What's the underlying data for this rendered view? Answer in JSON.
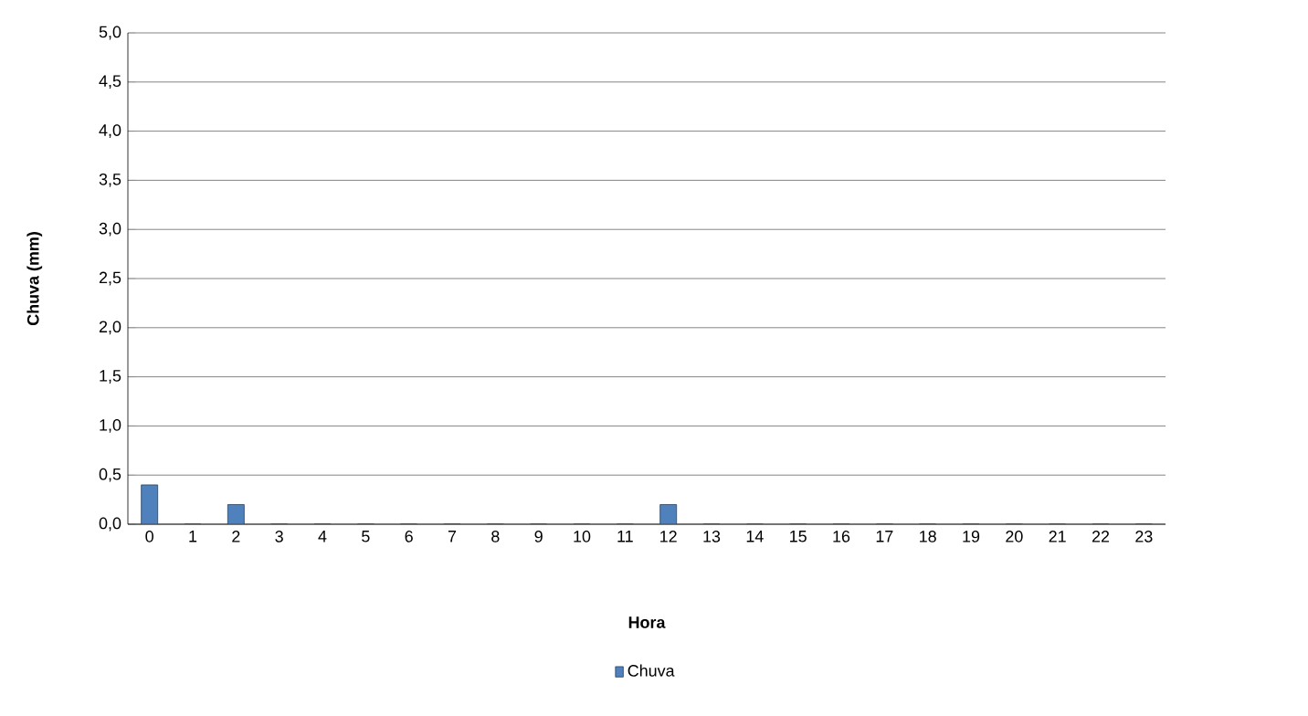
{
  "chart_data": {
    "type": "bar",
    "xlabel": "Hora",
    "ylabel": "Chuva (mm)",
    "categories": [
      "0",
      "1",
      "2",
      "3",
      "4",
      "5",
      "6",
      "7",
      "8",
      "9",
      "10",
      "11",
      "12",
      "13",
      "14",
      "15",
      "16",
      "17",
      "18",
      "19",
      "20",
      "21",
      "22",
      "23"
    ],
    "series": [
      {
        "name": "Chuva",
        "color": "#4f81bd",
        "values": [
          0.4,
          0,
          0.2,
          0,
          0,
          0,
          0,
          0,
          0,
          0,
          0,
          0,
          0.2,
          0,
          0,
          0,
          0,
          0,
          0,
          0,
          0,
          0,
          0,
          0
        ]
      }
    ],
    "ylim": [
      0,
      5
    ],
    "yticks": [
      {
        "value": 0,
        "label": "0,0"
      },
      {
        "value": 0.5,
        "label": "0,5"
      },
      {
        "value": 1,
        "label": "1,0"
      },
      {
        "value": 1.5,
        "label": "1,5"
      },
      {
        "value": 2,
        "label": "2,0"
      },
      {
        "value": 2.5,
        "label": "2,5"
      },
      {
        "value": 3,
        "label": "3,0"
      },
      {
        "value": 3.5,
        "label": "3,5"
      },
      {
        "value": 4,
        "label": "4,0"
      },
      {
        "value": 4.5,
        "label": "4,5"
      },
      {
        "value": 5,
        "label": "5,0"
      }
    ],
    "grid": "y",
    "legend": "bottom"
  }
}
